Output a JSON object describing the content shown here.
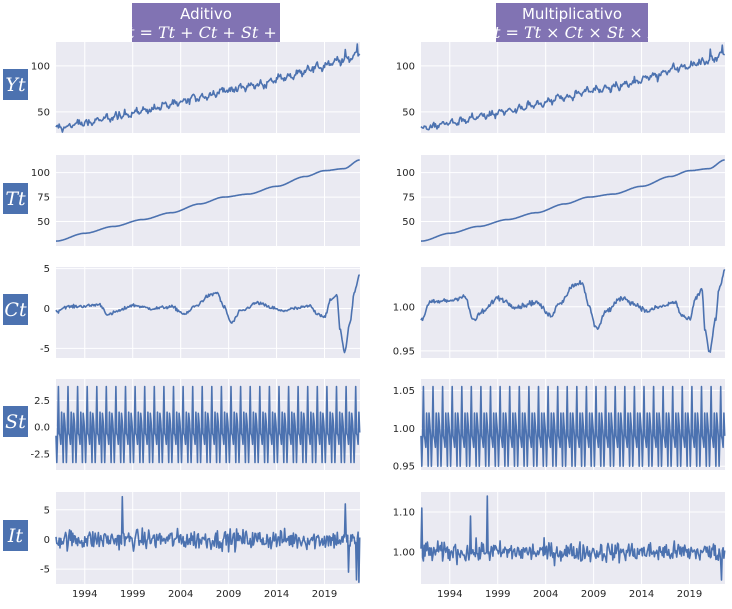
{
  "colors": {
    "line": "#4c72b0",
    "panel": "#eaeaf2",
    "grid": "#ffffff",
    "header": "#8173b3",
    "tick_text": "#262626"
  },
  "columns": [
    {
      "title": "Aditivo",
      "formula": "Yt = Tt + Ct + St + It"
    },
    {
      "title": "Multiplicativo",
      "formula": "Yt = Tt × Ct × St × It"
    }
  ],
  "rows": [
    {
      "key": "Y",
      "label": "Yt"
    },
    {
      "key": "T",
      "label": "Tt"
    },
    {
      "key": "C",
      "label": "Ct"
    },
    {
      "key": "S",
      "label": "St"
    },
    {
      "key": "I",
      "label": "It"
    }
  ],
  "chart_data": [
    {
      "type": "line",
      "panel": "Y-additive",
      "xlim": [
        1991,
        2022.7
      ],
      "ylim": [
        27,
        126
      ],
      "yticks": [
        50,
        100
      ],
      "series": [
        {
          "anchors": [
            [
              1991,
              32
            ],
            [
              1994,
              38
            ],
            [
              1997,
              44
            ],
            [
              2000,
              51
            ],
            [
              2003,
              58
            ],
            [
              2006,
              66
            ],
            [
              2009,
              74
            ],
            [
              2012,
              79
            ],
            [
              2015,
              88
            ],
            [
              2018,
              98
            ],
            [
              2021,
              106
            ],
            [
              2022.7,
              114
            ]
          ],
          "seasonal_amplitude": 4,
          "noise": 2.0,
          "spikes": [
            [
              1997.6,
              6
            ],
            [
              2021.2,
              7
            ],
            [
              2022.4,
              9
            ]
          ]
        }
      ]
    },
    {
      "type": "line",
      "panel": "T-additive",
      "xlim": [
        1991,
        2022.7
      ],
      "ylim": [
        25,
        118
      ],
      "yticks": [
        50,
        75,
        100
      ],
      "series": [
        {
          "anchors": [
            [
              1991,
              30
            ],
            [
              1994,
              38
            ],
            [
              1997,
              45
            ],
            [
              2000,
              52
            ],
            [
              2003,
              59
            ],
            [
              2006,
              68
            ],
            [
              2008.5,
              75
            ],
            [
              2011,
              78
            ],
            [
              2014,
              86
            ],
            [
              2017,
              96
            ],
            [
              2019,
              102
            ],
            [
              2021,
              104
            ],
            [
              2022.7,
              113
            ]
          ]
        }
      ]
    },
    {
      "type": "line",
      "panel": "C-additive",
      "xlim": [
        1991,
        2022.7
      ],
      "ylim": [
        -6.2,
        5.2
      ],
      "yticks": [
        -5,
        0,
        5
      ],
      "series": [
        {
          "anchors": [
            [
              1991,
              -0.4
            ],
            [
              1992,
              0.2
            ],
            [
              1994,
              0.3
            ],
            [
              1995.5,
              0.5
            ],
            [
              1996.5,
              -0.8
            ],
            [
              1997.5,
              -0.3
            ],
            [
              1999,
              0.4
            ],
            [
              2001,
              0
            ],
            [
              2003,
              0.2
            ],
            [
              2004.5,
              -0.7
            ],
            [
              2005.5,
              0.3
            ],
            [
              2007,
              1.6
            ],
            [
              2007.8,
              2.0
            ],
            [
              2008.5,
              0.2
            ],
            [
              2009.3,
              -1.8
            ],
            [
              2010.3,
              -0.3
            ],
            [
              2012,
              0.7
            ],
            [
              2013.5,
              0.1
            ],
            [
              2014.5,
              -0.3
            ],
            [
              2016,
              0
            ],
            [
              2017.5,
              0.3
            ],
            [
              2018.2,
              -0.6
            ],
            [
              2019,
              -1.0
            ],
            [
              2019.7,
              1.1
            ],
            [
              2020.3,
              1.7
            ],
            [
              2020.6,
              -2.5
            ],
            [
              2021.1,
              -5.5
            ],
            [
              2021.7,
              -1.5
            ],
            [
              2022.1,
              2.0
            ],
            [
              2022.7,
              4.4
            ]
          ],
          "noise": 0.15
        }
      ]
    },
    {
      "type": "line",
      "panel": "S-additive",
      "xlim": [
        1991,
        2022.7
      ],
      "ylim": [
        -4.0,
        4.5
      ],
      "yticks": [
        -2.5,
        0.0,
        2.5
      ],
      "series": [
        {
          "seasonal_profile": [
            -0.8,
            -3.3,
            -0.6,
            3.8,
            -0.6,
            -0.8,
            -1.6,
            1.4,
            -0.5,
            -3.3,
            1.3,
            0.5
          ],
          "period": 1
        }
      ]
    },
    {
      "type": "line",
      "panel": "I-additive",
      "xlim": [
        1991,
        2022.7
      ],
      "ylim": [
        -7.5,
        8
      ],
      "yticks": [
        -5,
        0,
        5
      ],
      "series": [
        {
          "noise": 1.2,
          "spikes": [
            [
              1997.9,
              7.2
            ],
            [
              2021.2,
              6.0
            ],
            [
              2022.3,
              -6.8
            ],
            [
              2022.6,
              -7.2
            ],
            [
              2021.5,
              -5.5
            ]
          ]
        }
      ]
    },
    {
      "type": "line",
      "panel": "Y-multiplicative",
      "xlim": [
        1991,
        2022.7
      ],
      "ylim": [
        27,
        126
      ],
      "yticks": [
        50,
        100
      ],
      "series": [
        {
          "anchors": [
            [
              1991,
              32
            ],
            [
              1994,
              38
            ],
            [
              1997,
              44
            ],
            [
              2000,
              51
            ],
            [
              2003,
              58
            ],
            [
              2006,
              66
            ],
            [
              2009,
              74
            ],
            [
              2012,
              79
            ],
            [
              2015,
              88
            ],
            [
              2018,
              98
            ],
            [
              2021,
              106
            ],
            [
              2022.7,
              114
            ]
          ],
          "seasonal_amplitude": 4,
          "noise": 2.0,
          "spikes": [
            [
              1997.6,
              6
            ],
            [
              2021.2,
              7
            ],
            [
              2022.4,
              9
            ]
          ]
        }
      ]
    },
    {
      "type": "line",
      "panel": "T-multiplicative",
      "xlim": [
        1991,
        2022.7
      ],
      "ylim": [
        25,
        118
      ],
      "yticks": [
        50,
        75,
        100
      ],
      "series": [
        {
          "anchors": [
            [
              1991,
              30
            ],
            [
              1994,
              38
            ],
            [
              1997,
              45
            ],
            [
              2000,
              52
            ],
            [
              2003,
              59
            ],
            [
              2006,
              68
            ],
            [
              2008.5,
              75
            ],
            [
              2011,
              78
            ],
            [
              2014,
              86
            ],
            [
              2017,
              96
            ],
            [
              2019,
              102
            ],
            [
              2021,
              104
            ],
            [
              2022.7,
              113
            ]
          ]
        }
      ]
    },
    {
      "type": "line",
      "panel": "C-multiplicative",
      "xlim": [
        1991,
        2022.7
      ],
      "ylim": [
        0.942,
        1.045
      ],
      "yticks": [
        0.95,
        1.0
      ],
      "series": [
        {
          "anchors": [
            [
              1991,
              0.985
            ],
            [
              1992,
              1.005
            ],
            [
              1994,
              1.007
            ],
            [
              1995.5,
              1.012
            ],
            [
              1996.5,
              0.985
            ],
            [
              1997.5,
              0.995
            ],
            [
              1999,
              1.01
            ],
            [
              2001,
              1.0
            ],
            [
              2003,
              1.005
            ],
            [
              2004.5,
              0.99
            ],
            [
              2005.5,
              1.005
            ],
            [
              2007,
              1.025
            ],
            [
              2007.8,
              1.028
            ],
            [
              2008.5,
              1.0
            ],
            [
              2009.3,
              0.975
            ],
            [
              2010.3,
              0.995
            ],
            [
              2012,
              1.01
            ],
            [
              2013.5,
              1.002
            ],
            [
              2014.5,
              0.995
            ],
            [
              2016,
              1.0
            ],
            [
              2017.5,
              1.005
            ],
            [
              2018.2,
              0.99
            ],
            [
              2019,
              0.985
            ],
            [
              2019.7,
              1.01
            ],
            [
              2020.3,
              1.02
            ],
            [
              2020.6,
              0.975
            ],
            [
              2021.1,
              0.948
            ],
            [
              2021.7,
              0.985
            ],
            [
              2022.1,
              1.02
            ],
            [
              2022.7,
              1.042
            ]
          ],
          "noise": 0.002
        }
      ]
    },
    {
      "type": "line",
      "panel": "S-multiplicative",
      "xlim": [
        1991,
        2022.7
      ],
      "ylim": [
        0.945,
        1.065
      ],
      "yticks": [
        0.95,
        1.0,
        1.05
      ],
      "series": [
        {
          "seasonal_profile": [
            0.99,
            0.95,
            0.99,
            1.055,
            0.99,
            0.985,
            0.975,
            1.02,
            0.99,
            0.95,
            1.02,
            1.005
          ],
          "period": 1
        }
      ]
    },
    {
      "type": "line",
      "panel": "I-multiplicative",
      "xlim": [
        1991,
        2022.7
      ],
      "ylim": [
        0.92,
        1.15
      ],
      "yticks": [
        1.0,
        1.1
      ],
      "series": [
        {
          "noise": 0.018,
          "spikes": [
            [
              1991.1,
              1.11
            ],
            [
              1996.2,
              1.09
            ],
            [
              1997.9,
              1.14
            ],
            [
              2022.3,
              0.93
            ]
          ]
        }
      ]
    }
  ],
  "x_axis": {
    "ticks": [
      1994,
      1999,
      2004,
      2009,
      2014,
      2019
    ],
    "labels": [
      "1994",
      "1999",
      "2004",
      "2009",
      "2014",
      "2019"
    ]
  }
}
